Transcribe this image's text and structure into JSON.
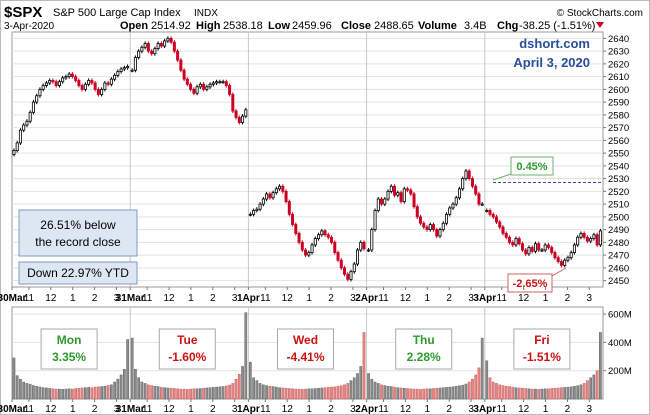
{
  "header": {
    "symbol": "$SPX",
    "name": "S&P 500 Large Cap Index",
    "exchange": "INDX",
    "copyright": "© StockCharts.com",
    "date": "3-Apr-2020",
    "open_label": "Open",
    "open": "2514.92",
    "high_label": "High",
    "high": "2538.18",
    "low_label": "Low",
    "low": "2459.96",
    "close_label": "Close",
    "close": "2488.65",
    "volume_label": "Volume",
    "volume": "3.4B",
    "chg_label": "Chg",
    "chg": "-38.25 (-1.51%)"
  },
  "watermark": {
    "site": "dshort.com",
    "date": "April 3, 2020"
  },
  "notes": {
    "below_line1": "26.51% below",
    "below_line2": "the record close",
    "ytd": "Down 22.97% YTD"
  },
  "callouts": {
    "high": "0.45%",
    "low": "-2.65%"
  },
  "colors": {
    "up": "#000000",
    "down": "#cc0022",
    "vol_up": "#8c8c8c",
    "vol_down": "#e58585",
    "pos_text": "#2e9a2e",
    "neg_text": "#cc1111"
  },
  "days": [
    {
      "name": "Mon",
      "pct": "3.35%",
      "dir": "up"
    },
    {
      "name": "Tue",
      "pct": "-1.60%",
      "dir": "down"
    },
    {
      "name": "Wed",
      "pct": "-4.41%",
      "dir": "down"
    },
    {
      "name": "Thu",
      "pct": "2.28%",
      "dir": "up"
    },
    {
      "name": "Fri",
      "pct": "-1.51%",
      "dir": "down"
    }
  ],
  "chart_data": {
    "type": "candlestick",
    "price_axis": {
      "ylim": [
        2445,
        2645
      ],
      "ticks": [
        2450,
        2460,
        2470,
        2480,
        2490,
        2500,
        2510,
        2520,
        2530,
        2540,
        2550,
        2560,
        2570,
        2580,
        2590,
        2600,
        2610,
        2620,
        2630,
        2640
      ]
    },
    "volume_axis": {
      "ylim": [
        0,
        650
      ],
      "unit": "M",
      "ticks": [
        {
          "v": 200,
          "label": "200M"
        },
        {
          "v": 400,
          "label": "400M"
        },
        {
          "v": 600,
          "label": "600M"
        }
      ]
    },
    "x_tick_labels": [
      {
        "label": "30Mar",
        "bold": true
      },
      {
        "label": "11",
        "bold": false
      },
      {
        "label": "12",
        "bold": false
      },
      {
        "label": "1",
        "bold": false
      },
      {
        "label": "2",
        "bold": false
      },
      {
        "label": "3",
        "bold": false
      },
      {
        "label": "31Mar",
        "bold": true
      },
      {
        "label": "11",
        "bold": false
      },
      {
        "label": "12",
        "bold": false
      },
      {
        "label": "1",
        "bold": false
      },
      {
        "label": "2",
        "bold": false
      },
      {
        "label": "3",
        "bold": false
      },
      {
        "label": "1Apr",
        "bold": true
      },
      {
        "label": "11",
        "bold": false
      },
      {
        "label": "12",
        "bold": false
      },
      {
        "label": "1",
        "bold": false
      },
      {
        "label": "2",
        "bold": false
      },
      {
        "label": "3",
        "bold": false
      },
      {
        "label": "2Apr",
        "bold": true
      },
      {
        "label": "11",
        "bold": false
      },
      {
        "label": "12",
        "bold": false
      },
      {
        "label": "1",
        "bold": false
      },
      {
        "label": "2",
        "bold": false
      },
      {
        "label": "3",
        "bold": false
      },
      {
        "label": "3Apr",
        "bold": true
      },
      {
        "label": "11",
        "bold": false
      },
      {
        "label": "12",
        "bold": false
      },
      {
        "label": "1",
        "bold": false
      },
      {
        "label": "2",
        "bold": false
      },
      {
        "label": "3",
        "bold": false
      }
    ],
    "reference_level": 2527,
    "sessions": [
      {
        "day": "30Mar",
        "closes": [
          2552,
          2558,
          2568,
          2572,
          2575,
          2582,
          2590,
          2595,
          2600,
          2603,
          2605,
          2607,
          2606,
          2603,
          2606,
          2609,
          2610,
          2612,
          2610,
          2607,
          2603,
          2600,
          2604,
          2607,
          2605,
          2600,
          2596,
          2600,
          2605,
          2604,
          2608,
          2611,
          2614,
          2616,
          2617,
          2618
        ],
        "volumes": [
          290,
          165,
          140,
          120,
          110,
          105,
          95,
          90,
          85,
          80,
          78,
          75,
          72,
          70,
          70,
          68,
          70,
          72,
          70,
          74,
          75,
          78,
          80,
          82,
          80,
          84,
          86,
          88,
          90,
          95,
          100,
          120,
          140,
          170,
          210,
          420
        ]
      },
      {
        "day": "31Mar",
        "closes": [
          2615,
          2625,
          2630,
          2633,
          2636,
          2630,
          2628,
          2632,
          2636,
          2634,
          2638,
          2640,
          2637,
          2630,
          2623,
          2615,
          2608,
          2604,
          2600,
          2597,
          2602,
          2604,
          2600,
          2602,
          2604,
          2605,
          2606,
          2606,
          2606,
          2603,
          2596,
          2583,
          2578,
          2574,
          2579,
          2584
        ],
        "volumes": [
          430,
          210,
          150,
          120,
          110,
          100,
          95,
          90,
          88,
          82,
          80,
          78,
          76,
          74,
          72,
          70,
          70,
          68,
          70,
          72,
          72,
          74,
          76,
          78,
          80,
          82,
          84,
          86,
          88,
          92,
          98,
          110,
          140,
          175,
          230,
          610
        ]
      },
      {
        "day": "1Apr",
        "closes": [
          2502,
          2505,
          2506,
          2510,
          2514,
          2518,
          2515,
          2519,
          2522,
          2524,
          2520,
          2512,
          2502,
          2494,
          2487,
          2480,
          2474,
          2470,
          2472,
          2478,
          2483,
          2486,
          2489,
          2486,
          2484,
          2480,
          2472,
          2466,
          2460,
          2455,
          2451,
          2457,
          2463,
          2474,
          2480,
          2475
        ],
        "volumes": [
          260,
          150,
          130,
          110,
          100,
          95,
          90,
          88,
          84,
          80,
          78,
          76,
          74,
          72,
          70,
          70,
          68,
          70,
          72,
          72,
          74,
          76,
          78,
          80,
          82,
          84,
          86,
          90,
          94,
          100,
          110,
          130,
          150,
          180,
          230,
          470
        ]
      },
      {
        "day": "2Apr",
        "closes": [
          2474,
          2490,
          2505,
          2514,
          2510,
          2514,
          2520,
          2524,
          2517,
          2519,
          2512,
          2522,
          2521,
          2518,
          2508,
          2500,
          2495,
          2492,
          2490,
          2494,
          2490,
          2485,
          2490,
          2495,
          2502,
          2507,
          2510,
          2515,
          2522,
          2530,
          2536,
          2530,
          2524,
          2518,
          2510,
          2510
        ],
        "volumes": [
          180,
          140,
          120,
          110,
          100,
          95,
          90,
          88,
          84,
          80,
          78,
          76,
          74,
          72,
          70,
          70,
          68,
          70,
          72,
          72,
          74,
          76,
          78,
          80,
          82,
          84,
          86,
          90,
          94,
          98,
          106,
          120,
          140,
          170,
          220,
          430
        ]
      },
      {
        "day": "3Apr",
        "closes": [
          2505,
          2502,
          2500,
          2496,
          2492,
          2487,
          2484,
          2480,
          2478,
          2483,
          2479,
          2474,
          2471,
          2476,
          2473,
          2479,
          2474,
          2474,
          2478,
          2476,
          2472,
          2468,
          2465,
          2462,
          2466,
          2468,
          2472,
          2478,
          2484,
          2487,
          2484,
          2481,
          2483,
          2486,
          2478,
          2489
        ],
        "volumes": [
          270,
          150,
          120,
          110,
          100,
          95,
          90,
          88,
          84,
          80,
          78,
          76,
          74,
          72,
          70,
          70,
          68,
          70,
          72,
          72,
          74,
          76,
          78,
          80,
          82,
          84,
          86,
          90,
          94,
          100,
          110,
          130,
          150,
          170,
          200,
          470
        ]
      }
    ]
  }
}
